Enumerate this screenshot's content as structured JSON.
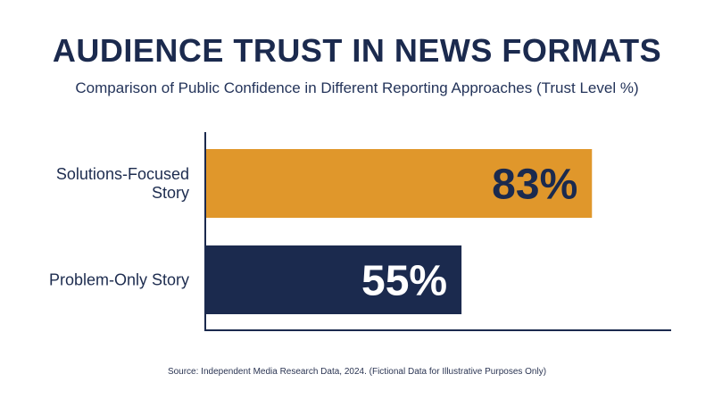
{
  "chart_data": {
    "type": "bar",
    "orientation": "horizontal",
    "title": "AUDIENCE TRUST IN NEWS FORMATS",
    "subtitle": "Comparison of Public Confidence in Different Reporting Approaches (Trust Level %)",
    "categories": [
      "Solutions-Focused Story",
      "Problem-Only Story"
    ],
    "category_lines": [
      [
        "Solutions-Focused",
        "Story"
      ],
      [
        "Problem-Only Story"
      ]
    ],
    "values": [
      83,
      55
    ],
    "value_labels": [
      "83%",
      "55%"
    ],
    "bar_colors": [
      "#e0972b",
      "#1b2a4e"
    ],
    "label_colors": [
      "#1b2a4e",
      "#ffffff"
    ],
    "xlim": [
      0,
      100
    ],
    "grid": false,
    "legend": "none",
    "source": "Source: Independent Media Research Data, 2024. (Fictional Data for Illustrative Purposes Only)"
  }
}
